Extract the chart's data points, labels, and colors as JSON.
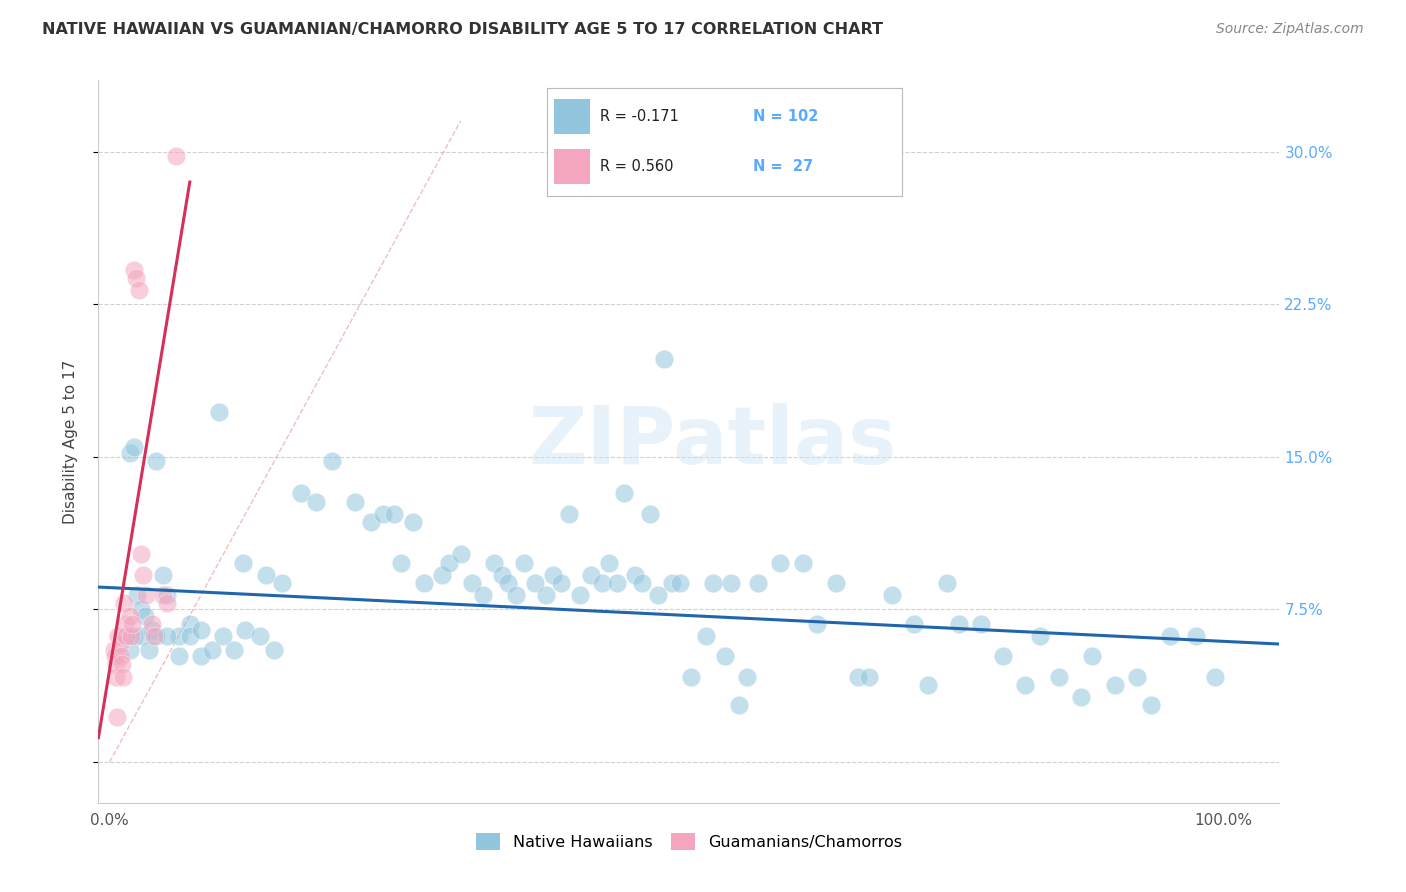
{
  "title": "NATIVE HAWAIIAN VS GUAMANIAN/CHAMORRO DISABILITY AGE 5 TO 17 CORRELATION CHART",
  "source": "Source: ZipAtlas.com",
  "ylabel": "Disability Age 5 to 17",
  "x_ticks": [
    0.0,
    0.2,
    0.4,
    0.6,
    0.8,
    1.0
  ],
  "y_ticks": [
    0.0,
    0.075,
    0.15,
    0.225,
    0.3
  ],
  "y_tick_labels_right": [
    "",
    "7.5%",
    "15.0%",
    "22.5%",
    "30.0%"
  ],
  "xlim": [
    -0.01,
    1.05
  ],
  "ylim": [
    -0.02,
    0.335
  ],
  "blue_R": "-0.171",
  "blue_N": "102",
  "pink_R": "0.560",
  "pink_N": "27",
  "blue_color": "#92c5de",
  "pink_color": "#f4a6be",
  "blue_line_color": "#2166ac",
  "pink_line_color": "#d6305a",
  "right_tick_color": "#5aabff",
  "legend_label_blue": "Native Hawaiians",
  "legend_label_pink": "Guamanians/Chamorros",
  "blue_scatter_x": [
    0.025,
    0.028,
    0.032,
    0.038,
    0.042,
    0.018,
    0.022,
    0.048,
    0.052,
    0.062,
    0.072,
    0.082,
    0.098,
    0.12,
    0.14,
    0.155,
    0.172,
    0.185,
    0.2,
    0.22,
    0.235,
    0.245,
    0.255,
    0.262,
    0.272,
    0.282,
    0.298,
    0.305,
    0.315,
    0.325,
    0.335,
    0.345,
    0.352,
    0.358,
    0.365,
    0.372,
    0.382,
    0.392,
    0.398,
    0.405,
    0.412,
    0.422,
    0.432,
    0.442,
    0.448,
    0.455,
    0.462,
    0.472,
    0.478,
    0.485,
    0.492,
    0.498,
    0.505,
    0.512,
    0.522,
    0.535,
    0.542,
    0.552,
    0.558,
    0.565,
    0.572,
    0.582,
    0.602,
    0.622,
    0.635,
    0.652,
    0.672,
    0.682,
    0.702,
    0.722,
    0.735,
    0.752,
    0.762,
    0.782,
    0.802,
    0.822,
    0.835,
    0.852,
    0.872,
    0.882,
    0.902,
    0.922,
    0.935,
    0.952,
    0.975,
    0.992,
    0.015,
    0.018,
    0.022,
    0.028,
    0.035,
    0.042,
    0.052,
    0.062,
    0.072,
    0.082,
    0.092,
    0.102,
    0.112,
    0.122,
    0.135,
    0.148
  ],
  "blue_scatter_y": [
    0.082,
    0.075,
    0.072,
    0.065,
    0.148,
    0.152,
    0.155,
    0.092,
    0.082,
    0.062,
    0.068,
    0.052,
    0.172,
    0.098,
    0.092,
    0.088,
    0.132,
    0.128,
    0.148,
    0.128,
    0.118,
    0.122,
    0.122,
    0.098,
    0.118,
    0.088,
    0.092,
    0.098,
    0.102,
    0.088,
    0.082,
    0.098,
    0.092,
    0.088,
    0.082,
    0.098,
    0.088,
    0.082,
    0.092,
    0.088,
    0.122,
    0.082,
    0.092,
    0.088,
    0.098,
    0.088,
    0.132,
    0.092,
    0.088,
    0.122,
    0.082,
    0.198,
    0.088,
    0.088,
    0.042,
    0.062,
    0.088,
    0.052,
    0.088,
    0.028,
    0.042,
    0.088,
    0.098,
    0.098,
    0.068,
    0.088,
    0.042,
    0.042,
    0.082,
    0.068,
    0.038,
    0.088,
    0.068,
    0.068,
    0.052,
    0.038,
    0.062,
    0.042,
    0.032,
    0.052,
    0.038,
    0.042,
    0.028,
    0.062,
    0.062,
    0.042,
    0.062,
    0.055,
    0.062,
    0.062,
    0.055,
    0.062,
    0.062,
    0.052,
    0.062,
    0.065,
    0.055,
    0.062,
    0.055,
    0.065,
    0.062,
    0.055
  ],
  "pink_scatter_x": [
    0.004,
    0.005,
    0.006,
    0.006,
    0.007,
    0.008,
    0.009,
    0.01,
    0.011,
    0.012,
    0.013,
    0.014,
    0.015,
    0.018,
    0.019,
    0.02,
    0.022,
    0.024,
    0.026,
    0.028,
    0.03,
    0.033,
    0.038,
    0.04,
    0.048,
    0.052,
    0.06
  ],
  "pink_scatter_y": [
    0.055,
    0.052,
    0.048,
    0.042,
    0.022,
    0.062,
    0.058,
    0.052,
    0.048,
    0.042,
    0.078,
    0.068,
    0.062,
    0.072,
    0.062,
    0.068,
    0.242,
    0.238,
    0.232,
    0.102,
    0.092,
    0.082,
    0.068,
    0.062,
    0.082,
    0.078,
    0.298
  ],
  "blue_trend_x": [
    -0.01,
    1.05
  ],
  "blue_trend_y": [
    0.086,
    0.058
  ],
  "pink_trend_x": [
    -0.01,
    0.072
  ],
  "pink_trend_y": [
    0.012,
    0.285
  ],
  "ref_line_x": [
    0.0,
    0.315
  ],
  "ref_line_y": [
    0.0,
    0.315
  ],
  "watermark": "ZIPatlas",
  "background_color": "#ffffff",
  "grid_color": "#d0d0d0"
}
